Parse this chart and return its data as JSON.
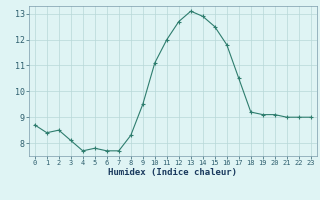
{
  "x": [
    0,
    1,
    2,
    3,
    4,
    5,
    6,
    7,
    8,
    9,
    10,
    11,
    12,
    13,
    14,
    15,
    16,
    17,
    18,
    19,
    20,
    21,
    22,
    23
  ],
  "y": [
    8.7,
    8.4,
    8.5,
    8.1,
    7.7,
    7.8,
    7.7,
    7.7,
    8.3,
    9.5,
    11.1,
    12.0,
    12.7,
    13.1,
    12.9,
    12.5,
    11.8,
    10.5,
    9.2,
    9.1,
    9.1,
    9.0,
    9.0,
    9.0
  ],
  "xlabel": "Humidex (Indice chaleur)",
  "ylim": [
    7.5,
    13.3
  ],
  "xlim": [
    -0.5,
    23.5
  ],
  "yticks": [
    8,
    9,
    10,
    11,
    12,
    13
  ],
  "xticks": [
    0,
    1,
    2,
    3,
    4,
    5,
    6,
    7,
    8,
    9,
    10,
    11,
    12,
    13,
    14,
    15,
    16,
    17,
    18,
    19,
    20,
    21,
    22,
    23
  ],
  "line_color": "#2e7d6e",
  "marker": "+",
  "bg_color": "#dff4f4",
  "grid_color": "#b8d8d8",
  "tick_label_color": "#2e5f6e",
  "xlabel_color": "#1a3a5e",
  "axis_color": "#7a9aaa",
  "figwidth": 3.2,
  "figheight": 2.0,
  "dpi": 100
}
